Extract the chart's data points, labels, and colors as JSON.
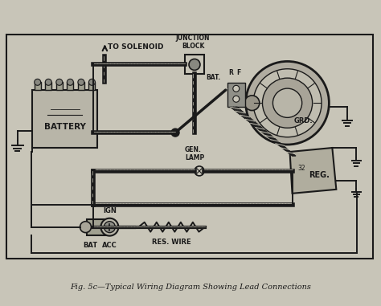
{
  "title": "Fig. 5c—Typical Wiring Diagram Showing Lead Connections",
  "bg_color": "#c8c5b8",
  "line_color": "#1a1a1a",
  "text_color": "#1a1a1a",
  "comp_fill": "#c8c5b8",
  "figsize": [
    4.74,
    3.81
  ],
  "dpi": 100,
  "border": [
    7,
    42,
    458,
    280
  ],
  "labels": {
    "to_solenoid": "TO SOLENOID",
    "junction_block": "JUNCTION\nBLOCK",
    "battery": "BATTERY",
    "bat_terminal": "BAT.",
    "r_terminal": "R",
    "f_terminal": "F",
    "grd": "GRD.",
    "gen_lamp": "GEN.\nLAMP",
    "reg": "REG.",
    "ign": "IGN",
    "bat": "BAT",
    "acc": "ACC",
    "res_wire": "RES. WIRE"
  }
}
